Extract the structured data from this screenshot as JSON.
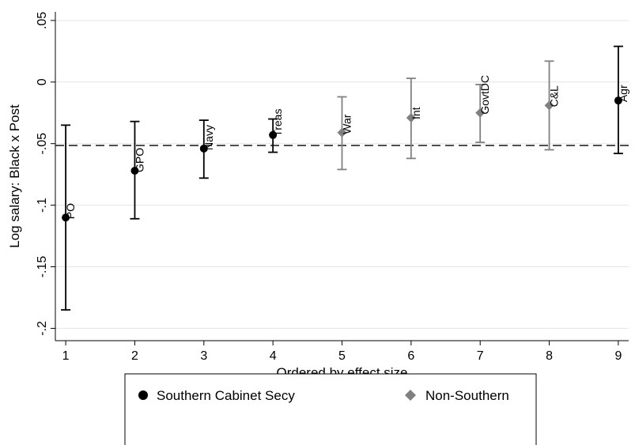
{
  "chart_data": {
    "type": "scatter",
    "title": "",
    "xlabel": "Ordered by effect size",
    "ylabel": "Log salary: Black x Post",
    "xlim": [
      0.85,
      9.15
    ],
    "ylim": [
      -0.21,
      0.057
    ],
    "xticks": [
      1,
      2,
      3,
      4,
      5,
      6,
      7,
      8,
      9
    ],
    "xtick_labels": [
      "1",
      "2",
      "3",
      "4",
      "5",
      "6",
      "7",
      "8",
      "9"
    ],
    "yticks": [
      0.05,
      0,
      -0.05,
      -0.1,
      -0.15,
      -0.2
    ],
    "ytick_labels": [
      ".05",
      "0",
      "-.05",
      "-.1",
      "-.15",
      "-.2"
    ],
    "grid": true,
    "reference_line": {
      "y": -0.0515,
      "style": "dashed"
    },
    "series": [
      {
        "name": "Southern Cabinet Secy",
        "marker": "circle",
        "color": "#000000",
        "points": [
          {
            "x": 1,
            "y": -0.11,
            "low": -0.185,
            "high": -0.035,
            "label": "PO"
          },
          {
            "x": 2,
            "y": -0.072,
            "low": -0.111,
            "high": -0.032,
            "label": "GPO"
          },
          {
            "x": 3,
            "y": -0.054,
            "low": -0.078,
            "high": -0.031,
            "label": "Navy"
          },
          {
            "x": 4,
            "y": -0.043,
            "low": -0.057,
            "high": -0.03,
            "label": "Treas"
          },
          {
            "x": 9,
            "y": -0.015,
            "low": -0.058,
            "high": 0.029,
            "label": "Agr"
          }
        ]
      },
      {
        "name": "Non-Southern",
        "marker": "diamond",
        "color": "#808080",
        "points": [
          {
            "x": 5,
            "y": -0.041,
            "low": -0.071,
            "high": -0.012,
            "label": "War"
          },
          {
            "x": 6,
            "y": -0.029,
            "low": -0.062,
            "high": 0.003,
            "label": "Int"
          },
          {
            "x": 7,
            "y": -0.025,
            "low": -0.049,
            "high": -0.002,
            "label": "GovtDC"
          },
          {
            "x": 8,
            "y": -0.019,
            "low": -0.055,
            "high": 0.017,
            "label": "C&L"
          }
        ]
      }
    ],
    "legend": {
      "placement": "bottom"
    }
  }
}
